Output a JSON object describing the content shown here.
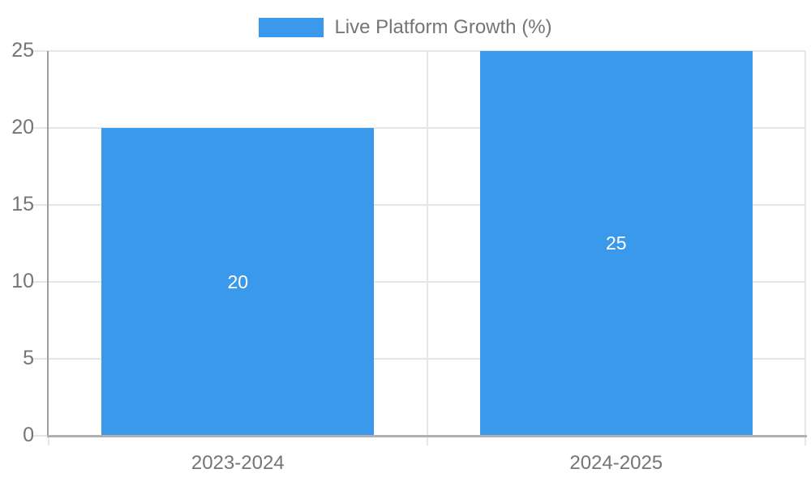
{
  "chart_data": {
    "type": "bar",
    "title": "",
    "legend": {
      "label": "Live Platform Growth (%)",
      "position": "top-center"
    },
    "categories": [
      "2023-2024",
      "2024-2025"
    ],
    "series": [
      {
        "name": "Live Platform Growth (%)",
        "values": [
          20,
          25
        ]
      }
    ],
    "data_labels": [
      "20",
      "25"
    ],
    "xlabel": "",
    "ylabel": "",
    "ylim": [
      0,
      25
    ],
    "yticks": [
      0,
      5,
      10,
      15,
      20,
      25
    ],
    "grid": true,
    "bar_width_ratio": 0.72,
    "colors": {
      "bar": "#3B99EC",
      "grid": "#E6E6E6",
      "axis": "#9E9E9E",
      "axis_bottom": "#B0B0B0",
      "text": "#757575",
      "bar_label": "#FFFFFF"
    }
  }
}
